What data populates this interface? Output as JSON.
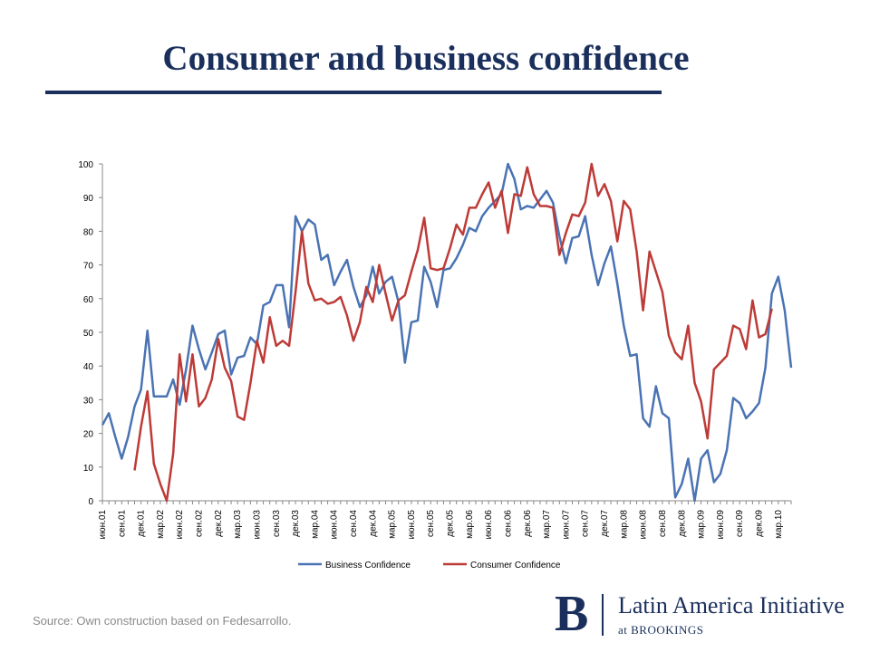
{
  "slide": {
    "title": "Consumer and business confidence",
    "source": "Source: Own construction based on Fedesarrollo.",
    "logo": {
      "initial": "B",
      "name": "Latin America Initiative",
      "sub": "at BROOKINGS"
    }
  },
  "colors": {
    "title": "#1a2f5c",
    "business": "#4a73b4",
    "consumer": "#bd3b37",
    "axis": "#888888"
  },
  "chart_data": {
    "type": "line",
    "ylim": [
      0,
      100
    ],
    "yticks": [
      0,
      10,
      20,
      30,
      40,
      50,
      60,
      70,
      80,
      90,
      100
    ],
    "x_tick_labels": [
      "июн.01",
      "сен.01",
      "дек.01",
      "мар.02",
      "июн.02",
      "сен.02",
      "дек.02",
      "мар.03",
      "июн.03",
      "сен.03",
      "дек.03",
      "мар.04",
      "июн.04",
      "сен.04",
      "дек.04",
      "мар.05",
      "июн.05",
      "сен.05",
      "дек.05",
      "мар.06",
      "июн.06",
      "сен.06",
      "дек.06",
      "мар.07",
      "июн.07",
      "сен.07",
      "дек.07",
      "мар.08",
      "июн.08",
      "сен.08",
      "дек.08",
      "мар.09",
      "июн.09",
      "сен.09",
      "дек.09",
      "мар.10"
    ],
    "legend_position": "bottom",
    "series": [
      {
        "name": "Business Confidence",
        "start_index": 0,
        "values": [
          22.5,
          26,
          19,
          12.5,
          19,
          28,
          33,
          50.5,
          31,
          31,
          31,
          36,
          28.5,
          39,
          52,
          45,
          39,
          44,
          49.5,
          50.5,
          37.5,
          42.5,
          43,
          48.5,
          46.5,
          58,
          59,
          64,
          64,
          51.5,
          84.5,
          80,
          83.5,
          82,
          71.5,
          73,
          64,
          68,
          71.5,
          63.5,
          57.5,
          61,
          69.5,
          61.5,
          65,
          66.5,
          59,
          41,
          53,
          53.5,
          69.5,
          65,
          57.5,
          68.5,
          69,
          72,
          76,
          81,
          80,
          84.5,
          87,
          89,
          91,
          100,
          95.5,
          86.5,
          87.5,
          87,
          89.5,
          92,
          88.5,
          78.5,
          70.5,
          78,
          78.5,
          84.5,
          73,
          64,
          70.5,
          75.5,
          64.5,
          52,
          43,
          43.5,
          24.5,
          22,
          34,
          26,
          24.5,
          1,
          5,
          12.5,
          0,
          12.5,
          15,
          5.5,
          8,
          15,
          30.5,
          29,
          24.5,
          26.5,
          29,
          39.5,
          61.5,
          66.5,
          56.5,
          39.5
        ]
      },
      {
        "name": "Consumer Confidence",
        "start_index": 5,
        "values": [
          9,
          22,
          32.5,
          11,
          5,
          0,
          14,
          43.5,
          29.5,
          43.5,
          28,
          30.5,
          36,
          48,
          39.5,
          35.5,
          25,
          24,
          35,
          47.5,
          41,
          54.5,
          46,
          47.5,
          46,
          62,
          80,
          64.5,
          59.5,
          60,
          58.5,
          59,
          60.5,
          55,
          47.5,
          53,
          63.5,
          59,
          70,
          61.5,
          53.5,
          59.5,
          61,
          68,
          74.5,
          84,
          69,
          68.5,
          69,
          75,
          82,
          79,
          87,
          87,
          91,
          94.5,
          87,
          92,
          79.5,
          91,
          90.5,
          99,
          91,
          87.5,
          87.5,
          87,
          73,
          79.5,
          85,
          84.5,
          88.5,
          100,
          90.5,
          94,
          89,
          77,
          89,
          86.5,
          74,
          56.5,
          74,
          68,
          62,
          49,
          44,
          42,
          52,
          35,
          29.5,
          18.5,
          39,
          41,
          43,
          52,
          51,
          45,
          59.5,
          48.5,
          49.5,
          57
        ]
      }
    ]
  }
}
